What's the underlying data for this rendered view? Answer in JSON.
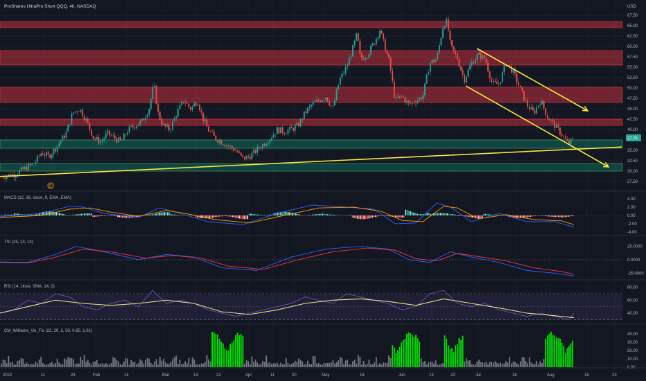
{
  "header": {
    "title": "ProShares UltraPro Short QQQ, 4h, NASDAQ",
    "currency": "USD"
  },
  "chart_data": [
    {
      "type": "candlestick",
      "title": "ProShares UltraPro Short QQQ, 4h, NASDAQ",
      "ylim": [
        25,
        68.5
      ],
      "price_ticks": [
        "67.50",
        "65.00",
        "62.50",
        "60.00",
        "57.50",
        "55.00",
        "52.50",
        "50.00",
        "47.50",
        "45.00",
        "42.50",
        "40.00",
        "37.50",
        "35.00",
        "32.50",
        "30.00",
        "27.50"
      ],
      "last_price": "37.76",
      "colors": {
        "up": "#26a69a",
        "down": "#ef5350",
        "support_line": "#f5e642",
        "zone_red": "#f23645",
        "zone_green": "#089981"
      },
      "path": [
        [
          0,
          28.7
        ],
        [
          20,
          29.2
        ],
        [
          40,
          31
        ],
        [
          50,
          32
        ],
        [
          60,
          34.5
        ],
        [
          70,
          33.5
        ],
        [
          80,
          35.5
        ],
        [
          95,
          39
        ],
        [
          105,
          44
        ],
        [
          115,
          45
        ],
        [
          125,
          42
        ],
        [
          135,
          38
        ],
        [
          145,
          37
        ],
        [
          155,
          39
        ],
        [
          165,
          38
        ],
        [
          175,
          37
        ],
        [
          185,
          40
        ],
        [
          195,
          41
        ],
        [
          205,
          42
        ],
        [
          215,
          45
        ],
        [
          222,
          51
        ],
        [
          228,
          44
        ],
        [
          235,
          41
        ],
        [
          245,
          40
        ],
        [
          255,
          44
        ],
        [
          265,
          47
        ],
        [
          275,
          45
        ],
        [
          285,
          47
        ],
        [
          292,
          43
        ],
        [
          300,
          40
        ],
        [
          310,
          38
        ],
        [
          320,
          37
        ],
        [
          330,
          36
        ],
        [
          340,
          35
        ],
        [
          350,
          33
        ],
        [
          360,
          33.5
        ],
        [
          370,
          35
        ],
        [
          380,
          36.5
        ],
        [
          390,
          38
        ],
        [
          400,
          40
        ],
        [
          410,
          39.5
        ],
        [
          420,
          40
        ],
        [
          430,
          41
        ],
        [
          440,
          44
        ],
        [
          450,
          46
        ],
        [
          460,
          47
        ],
        [
          470,
          48
        ],
        [
          480,
          45
        ],
        [
          490,
          52
        ],
        [
          500,
          55
        ],
        [
          510,
          60
        ],
        [
          515,
          63
        ],
        [
          520,
          57
        ],
        [
          530,
          58
        ],
        [
          540,
          61
        ],
        [
          548,
          64
        ],
        [
          555,
          60
        ],
        [
          562,
          56
        ],
        [
          570,
          47
        ],
        [
          580,
          48
        ],
        [
          590,
          46
        ],
        [
          600,
          47
        ],
        [
          610,
          48
        ],
        [
          620,
          56
        ],
        [
          630,
          57
        ],
        [
          640,
          65.5
        ],
        [
          645,
          66
        ],
        [
          650,
          60
        ],
        [
          660,
          57
        ],
        [
          670,
          52
        ],
        [
          680,
          56
        ],
        [
          690,
          58
        ],
        [
          700,
          57
        ],
        [
          710,
          51
        ],
        [
          720,
          51
        ],
        [
          730,
          56
        ],
        [
          740,
          54
        ],
        [
          750,
          50
        ],
        [
          760,
          46
        ],
        [
          770,
          44
        ],
        [
          780,
          47
        ],
        [
          790,
          43
        ],
        [
          800,
          41
        ],
        [
          810,
          39
        ],
        [
          820,
          36.5
        ],
        [
          828,
          37.8
        ]
      ],
      "resistance_zones": [
        [
          64.5,
          66
        ],
        [
          55.5,
          59
        ],
        [
          46.5,
          50.2
        ],
        [
          41,
          42.5
        ]
      ],
      "support_zones": [
        [
          35.5,
          37.5
        ],
        [
          30,
          31.8
        ]
      ],
      "trendlines": [
        {
          "from": [
            0,
            28.7
          ],
          "to": [
            897,
            35.8
          ]
        },
        {
          "from": [
            688,
            59.5
          ],
          "to": [
            848,
            44.5
          ],
          "arrow": true
        },
        {
          "from": [
            672,
            50.5
          ],
          "to": [
            878,
            31
          ],
          "arrow": true
        }
      ],
      "event_marker": "E",
      "x_ticks": [
        "2022",
        "11",
        "24",
        "Feb",
        "14",
        "Mar",
        "14",
        "22",
        "Apr",
        "11",
        "20",
        "May",
        "16",
        "Jun",
        "13",
        "22",
        "Jul",
        "18",
        "Aug",
        "15",
        "23"
      ]
    },
    {
      "type": "line",
      "title": "MACD (12, 26, close, 9, EMA, EMA)",
      "y_ticks": [
        "4.00",
        "2.00",
        "0.00",
        "-2.00",
        "-4.00"
      ],
      "ylim": [
        -4.5,
        4.5
      ],
      "series": [
        {
          "name": "MACD",
          "color": "#2962ff",
          "points": [
            [
              0,
              -0.3
            ],
            [
              60,
              0.5
            ],
            [
              100,
              2.2
            ],
            [
              120,
              2.0
            ],
            [
              150,
              0.5
            ],
            [
              200,
              -0.5
            ],
            [
              230,
              1.8
            ],
            [
              260,
              0.5
            ],
            [
              300,
              -1.5
            ],
            [
              350,
              -2.2
            ],
            [
              400,
              0.5
            ],
            [
              450,
              2.5
            ],
            [
              500,
              2.0
            ],
            [
              540,
              1.5
            ],
            [
              570,
              -2.0
            ],
            [
              600,
              -1.8
            ],
            [
              630,
              3.0
            ],
            [
              650,
              2.0
            ],
            [
              680,
              -1.5
            ],
            [
              720,
              0.5
            ],
            [
              760,
              -1.5
            ],
            [
              800,
              -1.5
            ],
            [
              828,
              -2.8
            ]
          ]
        },
        {
          "name": "Signal",
          "color": "#ff9800",
          "points": [
            [
              0,
              -0.5
            ],
            [
              60,
              0.0
            ],
            [
              100,
              1.5
            ],
            [
              130,
              1.8
            ],
            [
              160,
              0.8
            ],
            [
              200,
              -0.2
            ],
            [
              240,
              1.2
            ],
            [
              270,
              0.4
            ],
            [
              310,
              -1.0
            ],
            [
              360,
              -1.8
            ],
            [
              410,
              0.0
            ],
            [
              460,
              1.8
            ],
            [
              510,
              2.0
            ],
            [
              550,
              1.0
            ],
            [
              580,
              -1.2
            ],
            [
              610,
              -1.5
            ],
            [
              640,
              2.2
            ],
            [
              660,
              1.8
            ],
            [
              690,
              -0.8
            ],
            [
              730,
              0.2
            ],
            [
              770,
              -1.0
            ],
            [
              810,
              -1.3
            ],
            [
              828,
              -2.2
            ]
          ]
        }
      ],
      "histogram": [
        0.2,
        0.6,
        1.0,
        0.5,
        -0.4,
        -0.6,
        0.8,
        0.3,
        -0.7,
        -0.9,
        0.5,
        0.9,
        0.4,
        0.3,
        -0.9,
        -0.5,
        1.5,
        0.6,
        -0.7,
        0.4,
        -0.6,
        -0.4,
        -0.5
      ]
    },
    {
      "type": "line",
      "title": "TSI (25, 13, 13)",
      "y_ticks": [
        "25.0000",
        "0.0000",
        "-25.0000"
      ],
      "ylim": [
        -35,
        35
      ],
      "series": [
        {
          "name": "TSI",
          "color": "#2962ff",
          "points": [
            [
              0,
              -4
            ],
            [
              40,
              -5
            ],
            [
              80,
              10
            ],
            [
              110,
              25
            ],
            [
              150,
              15
            ],
            [
              200,
              0
            ],
            [
              240,
              10
            ],
            [
              280,
              5
            ],
            [
              320,
              -15
            ],
            [
              370,
              -20
            ],
            [
              420,
              5
            ],
            [
              470,
              20
            ],
            [
              520,
              25
            ],
            [
              560,
              20
            ],
            [
              590,
              0
            ],
            [
              620,
              -5
            ],
            [
              650,
              15
            ],
            [
              680,
              5
            ],
            [
              720,
              -5
            ],
            [
              760,
              -20
            ],
            [
              800,
              -25
            ],
            [
              828,
              -30
            ]
          ]
        },
        {
          "name": "Signal",
          "color": "#f23645",
          "points": [
            [
              0,
              -5
            ],
            [
              40,
              -6
            ],
            [
              80,
              5
            ],
            [
              120,
              20
            ],
            [
              160,
              15
            ],
            [
              210,
              3
            ],
            [
              250,
              8
            ],
            [
              290,
              3
            ],
            [
              330,
              -12
            ],
            [
              380,
              -18
            ],
            [
              430,
              0
            ],
            [
              480,
              15
            ],
            [
              530,
              22
            ],
            [
              570,
              18
            ],
            [
              600,
              2
            ],
            [
              630,
              -2
            ],
            [
              660,
              12
            ],
            [
              690,
              6
            ],
            [
              730,
              -2
            ],
            [
              770,
              -15
            ],
            [
              810,
              -22
            ],
            [
              828,
              -27
            ]
          ]
        }
      ]
    },
    {
      "type": "line",
      "title": "RSI (14, close, SMA, 14, 2)",
      "y_ticks": [
        "80.00",
        "60.00",
        "40.00"
      ],
      "ylim": [
        25,
        85
      ],
      "bands": [
        30,
        70
      ],
      "series": [
        {
          "name": "RSI",
          "color": "#7e57c2",
          "points": [
            [
              0,
              40
            ],
            [
              20,
              45
            ],
            [
              40,
              60
            ],
            [
              60,
              55
            ],
            [
              80,
              70
            ],
            [
              100,
              65
            ],
            [
              120,
              50
            ],
            [
              140,
              45
            ],
            [
              160,
              55
            ],
            [
              180,
              60
            ],
            [
              200,
              50
            ],
            [
              220,
              75
            ],
            [
              240,
              55
            ],
            [
              260,
              60
            ],
            [
              280,
              55
            ],
            [
              300,
              45
            ],
            [
              320,
              40
            ],
            [
              340,
              35
            ],
            [
              360,
              40
            ],
            [
              380,
              45
            ],
            [
              400,
              50
            ],
            [
              420,
              55
            ],
            [
              440,
              65
            ],
            [
              460,
              60
            ],
            [
              480,
              55
            ],
            [
              500,
              70
            ],
            [
              520,
              65
            ],
            [
              540,
              60
            ],
            [
              560,
              55
            ],
            [
              580,
              45
            ],
            [
              600,
              50
            ],
            [
              620,
              70
            ],
            [
              640,
              75
            ],
            [
              660,
              55
            ],
            [
              680,
              50
            ],
            [
              700,
              55
            ],
            [
              720,
              45
            ],
            [
              740,
              40
            ],
            [
              760,
              35
            ],
            [
              780,
              40
            ],
            [
              800,
              35
            ],
            [
              820,
              30
            ],
            [
              828,
              40
            ]
          ]
        },
        {
          "name": "RSI-based MA",
          "color": "#e8e28a",
          "points": [
            [
              0,
              40
            ],
            [
              40,
              50
            ],
            [
              80,
              60
            ],
            [
              120,
              55
            ],
            [
              160,
              52
            ],
            [
              200,
              55
            ],
            [
              240,
              60
            ],
            [
              280,
              55
            ],
            [
              320,
              42
            ],
            [
              360,
              38
            ],
            [
              400,
              45
            ],
            [
              440,
              55
            ],
            [
              480,
              60
            ],
            [
              520,
              62
            ],
            [
              560,
              58
            ],
            [
              600,
              52
            ],
            [
              640,
              62
            ],
            [
              680,
              55
            ],
            [
              720,
              48
            ],
            [
              760,
              40
            ],
            [
              800,
              36
            ],
            [
              828,
              33
            ]
          ]
        }
      ]
    },
    {
      "type": "bar",
      "title": "CM_Williams_Vix_Fix (22, 20, 2, 50, 0.85, 1.01)",
      "y_ticks": [
        "40.00",
        "30.00",
        "20.00",
        "10.00",
        "0.00"
      ],
      "ylim": [
        0,
        45
      ],
      "colors": {
        "normal": "#787b86",
        "spike": "#00e600"
      },
      "spike_periods": [
        [
          305,
          352
        ],
        [
          565,
          606
        ],
        [
          640,
          670
        ],
        [
          785,
          828
        ]
      ]
    }
  ]
}
